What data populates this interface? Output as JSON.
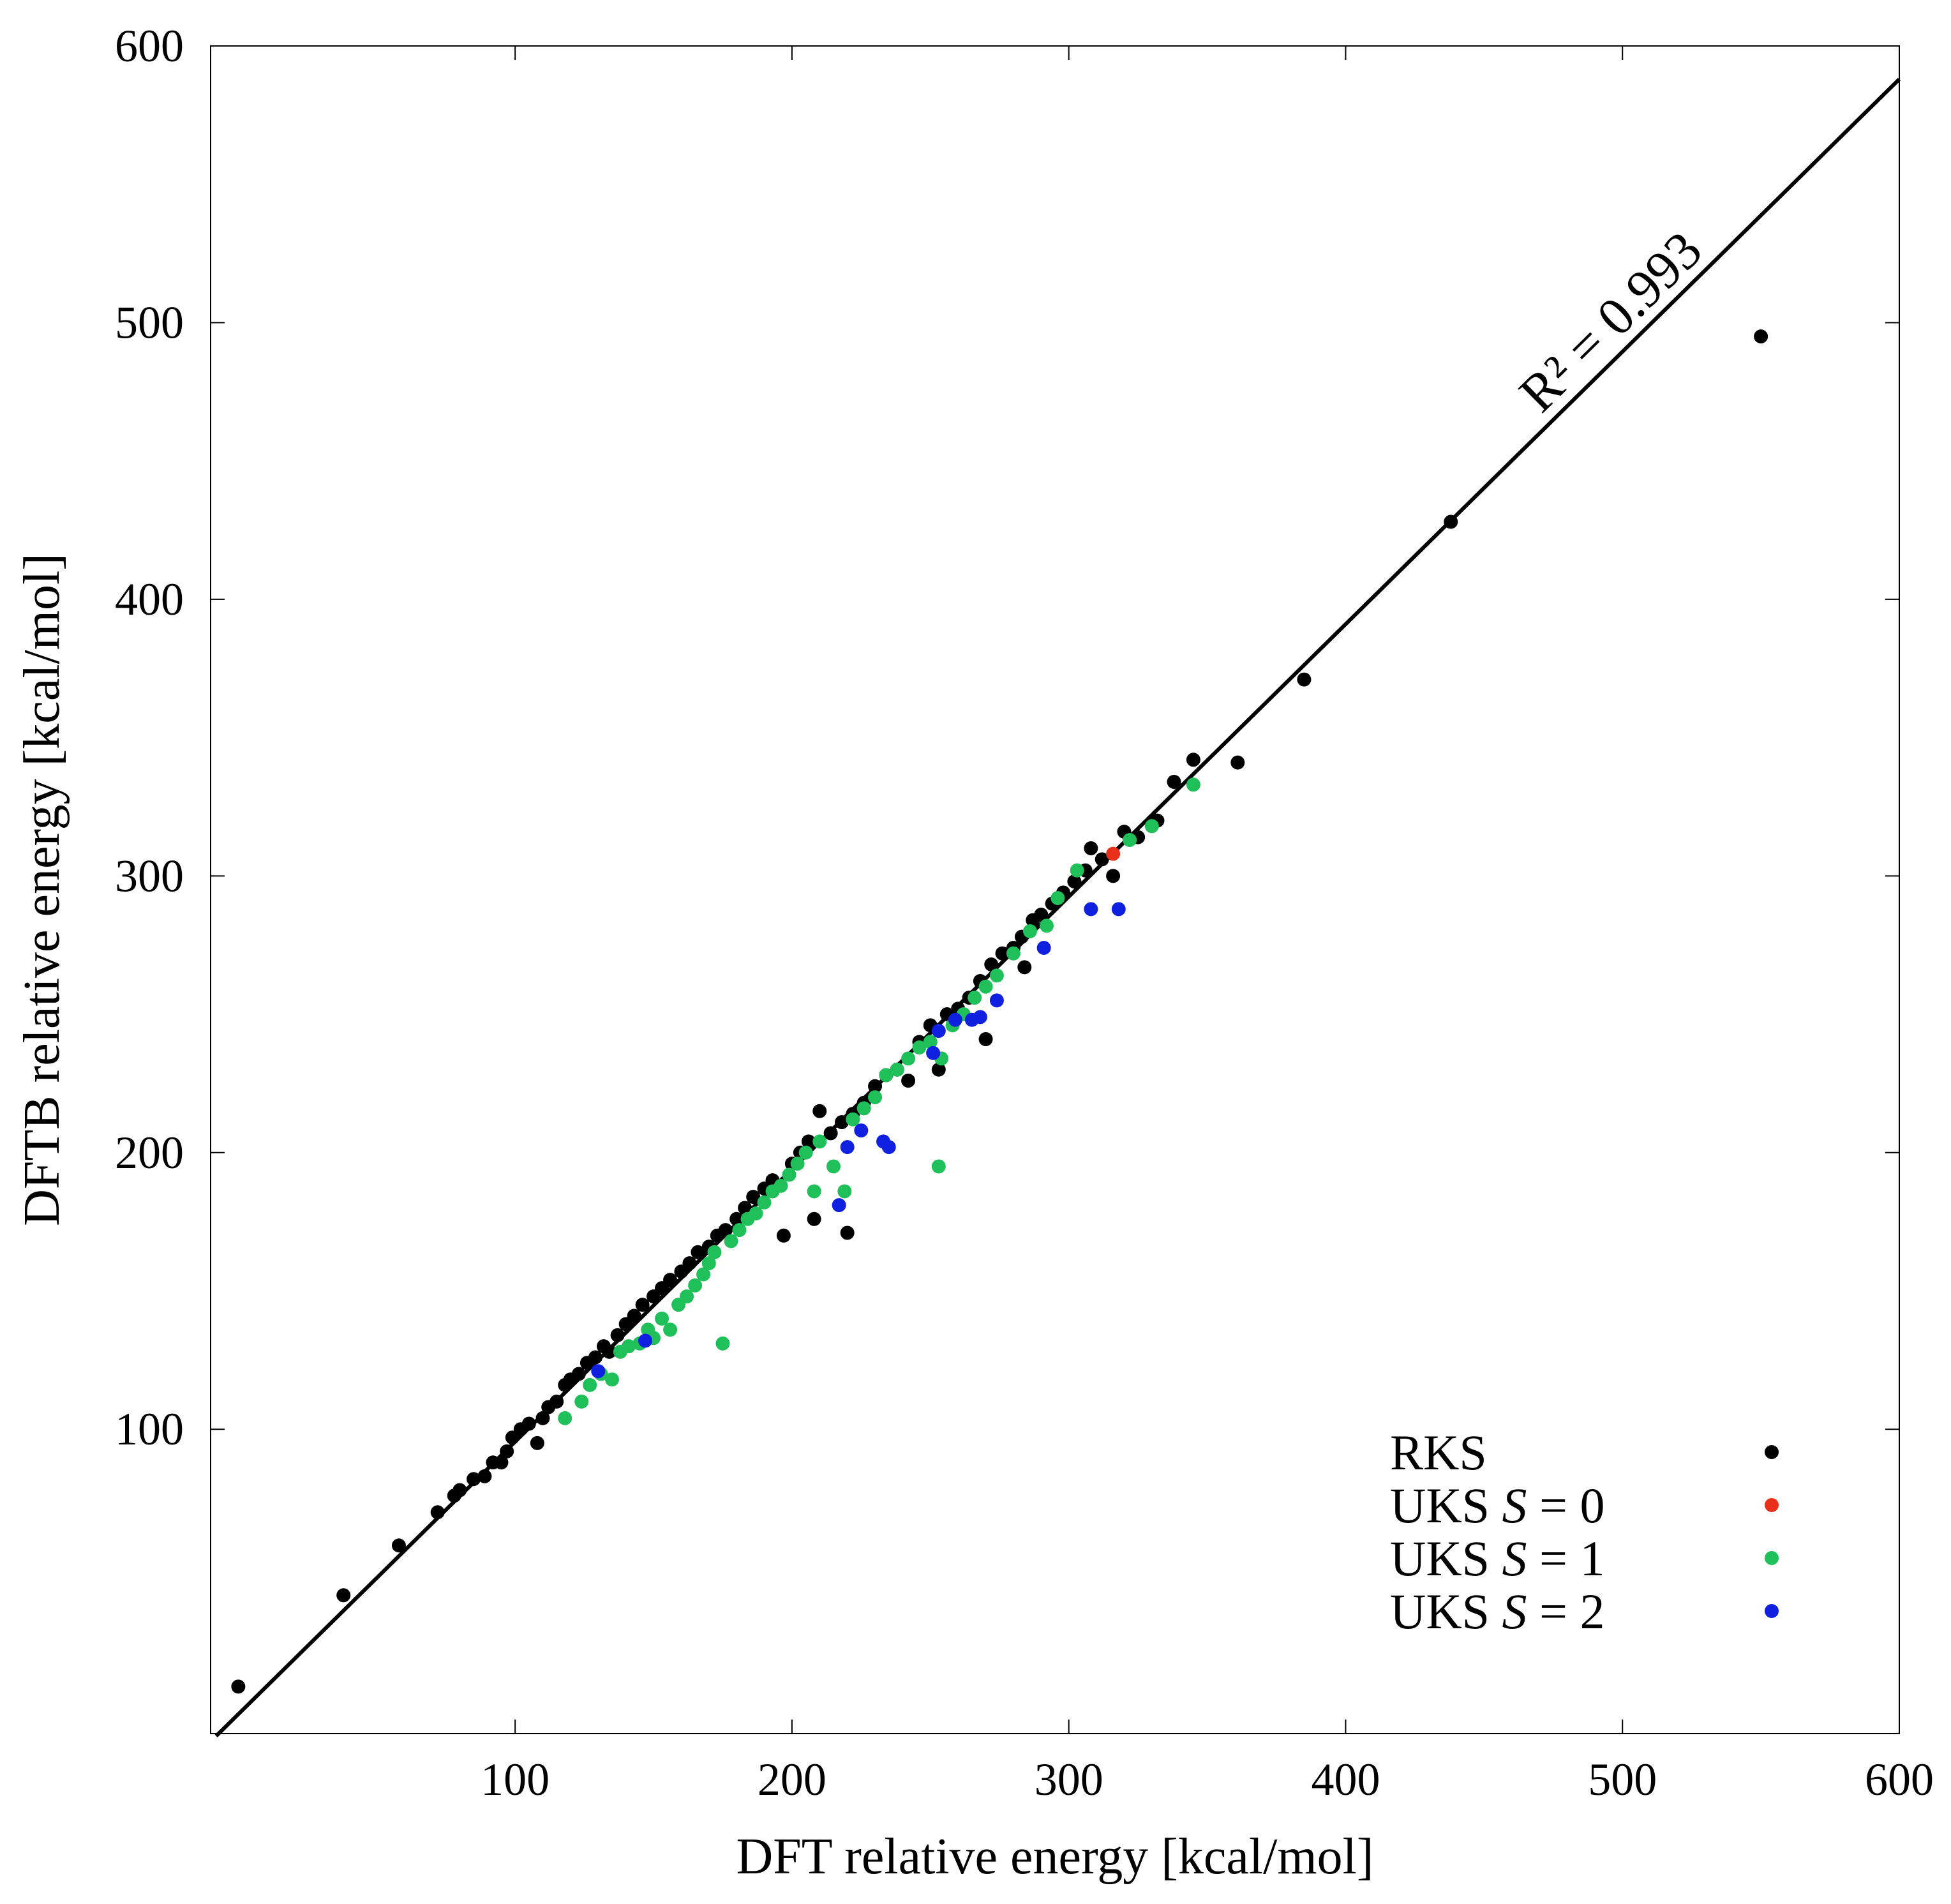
{
  "chart_data": {
    "type": "scatter",
    "title": "",
    "xlabel": "DFT relative energy [kcal/mol]",
    "ylabel": "DFTB relative energy [kcal/mol]",
    "xlim": [
      -10,
      600
    ],
    "ylim": [
      -10,
      600
    ],
    "x_ticks": [
      100,
      200,
      300,
      400,
      500,
      600
    ],
    "y_ticks": [
      100,
      200,
      300,
      400,
      500,
      600
    ],
    "grid": false,
    "legend_position": "bottom-right",
    "fit_line": {
      "slope": 0.985,
      "intercept": -3,
      "label": "R² = 0.993"
    },
    "series": [
      {
        "name": "RKS",
        "label_prefix": "RKS",
        "label_var": "",
        "label_eq": "",
        "color": "#000000",
        "points": [
          [
            0,
            7
          ],
          [
            38,
            40
          ],
          [
            58,
            58
          ],
          [
            72,
            70
          ],
          [
            78,
            76
          ],
          [
            80,
            78
          ],
          [
            85,
            82
          ],
          [
            89,
            83
          ],
          [
            92,
            88
          ],
          [
            95,
            88
          ],
          [
            97,
            92
          ],
          [
            99,
            97
          ],
          [
            102,
            100
          ],
          [
            105,
            102
          ],
          [
            108,
            95
          ],
          [
            110,
            104
          ],
          [
            112,
            108
          ],
          [
            115,
            110
          ],
          [
            118,
            116
          ],
          [
            120,
            118
          ],
          [
            123,
            120
          ],
          [
            126,
            124
          ],
          [
            129,
            126
          ],
          [
            132,
            130
          ],
          [
            134,
            128
          ],
          [
            137,
            134
          ],
          [
            140,
            138
          ],
          [
            143,
            141
          ],
          [
            146,
            145
          ],
          [
            150,
            148
          ],
          [
            153,
            151
          ],
          [
            156,
            154
          ],
          [
            160,
            157
          ],
          [
            163,
            160
          ],
          [
            166,
            164
          ],
          [
            170,
            166
          ],
          [
            173,
            170
          ],
          [
            176,
            172
          ],
          [
            180,
            176
          ],
          [
            183,
            180
          ],
          [
            186,
            184
          ],
          [
            190,
            187
          ],
          [
            193,
            190
          ],
          [
            197,
            170
          ],
          [
            200,
            196
          ],
          [
            203,
            200
          ],
          [
            206,
            204
          ],
          [
            208,
            176
          ],
          [
            210,
            215
          ],
          [
            214,
            207
          ],
          [
            218,
            211
          ],
          [
            220,
            171
          ],
          [
            222,
            214
          ],
          [
            226,
            218
          ],
          [
            230,
            224
          ],
          [
            234,
            228
          ],
          [
            238,
            230
          ],
          [
            242,
            226
          ],
          [
            246,
            240
          ],
          [
            250,
            246
          ],
          [
            253,
            230
          ],
          [
            256,
            250
          ],
          [
            260,
            252
          ],
          [
            264,
            256
          ],
          [
            268,
            262
          ],
          [
            270,
            241
          ],
          [
            272,
            268
          ],
          [
            276,
            272
          ],
          [
            280,
            274
          ],
          [
            283,
            278
          ],
          [
            284,
            267
          ],
          [
            287,
            284
          ],
          [
            290,
            286
          ],
          [
            294,
            290
          ],
          [
            298,
            294
          ],
          [
            302,
            298
          ],
          [
            306,
            302
          ],
          [
            308,
            310
          ],
          [
            312,
            306
          ],
          [
            316,
            300
          ],
          [
            320,
            316
          ],
          [
            325,
            314
          ],
          [
            332,
            320
          ],
          [
            338,
            334
          ],
          [
            345,
            342
          ],
          [
            361,
            341
          ],
          [
            385,
            371
          ],
          [
            438,
            428
          ],
          [
            550,
            495
          ]
        ]
      },
      {
        "name": "UKS S = 0",
        "label_prefix": "UKS ",
        "label_var": "S",
        "label_eq": " = 0",
        "color": "#e8301a",
        "points": [
          [
            316,
            308
          ]
        ]
      },
      {
        "name": "UKS S = 1",
        "label_prefix": "UKS ",
        "label_var": "S",
        "label_eq": " = 1",
        "color": "#1fbf5a",
        "points": [
          [
            118,
            104
          ],
          [
            124,
            110
          ],
          [
            127,
            116
          ],
          [
            131,
            120
          ],
          [
            135,
            118
          ],
          [
            138,
            128
          ],
          [
            141,
            130
          ],
          [
            145,
            131
          ],
          [
            148,
            136
          ],
          [
            150,
            133
          ],
          [
            153,
            140
          ],
          [
            156,
            136
          ],
          [
            159,
            145
          ],
          [
            162,
            148
          ],
          [
            165,
            152
          ],
          [
            168,
            156
          ],
          [
            170,
            160
          ],
          [
            172,
            164
          ],
          [
            175,
            131
          ],
          [
            178,
            168
          ],
          [
            181,
            172
          ],
          [
            184,
            176
          ],
          [
            187,
            178
          ],
          [
            190,
            182
          ],
          [
            193,
            186
          ],
          [
            196,
            188
          ],
          [
            199,
            192
          ],
          [
            202,
            196
          ],
          [
            205,
            200
          ],
          [
            208,
            186
          ],
          [
            210,
            204
          ],
          [
            215,
            195
          ],
          [
            219,
            186
          ],
          [
            222,
            212
          ],
          [
            226,
            216
          ],
          [
            230,
            220
          ],
          [
            234,
            228
          ],
          [
            238,
            230
          ],
          [
            242,
            234
          ],
          [
            246,
            238
          ],
          [
            250,
            240
          ],
          [
            253,
            195
          ],
          [
            254,
            234
          ],
          [
            258,
            246
          ],
          [
            262,
            250
          ],
          [
            266,
            256
          ],
          [
            270,
            260
          ],
          [
            274,
            264
          ],
          [
            280,
            272
          ],
          [
            286,
            280
          ],
          [
            292,
            282
          ],
          [
            296,
            292
          ],
          [
            303,
            302
          ],
          [
            322,
            313
          ],
          [
            330,
            318
          ],
          [
            345,
            333
          ]
        ]
      },
      {
        "name": "UKS S = 2",
        "label_prefix": "UKS ",
        "label_var": "S",
        "label_eq": " = 2",
        "color": "#1020e0",
        "points": [
          [
            130,
            121
          ],
          [
            147,
            132
          ],
          [
            217,
            181
          ],
          [
            220,
            202
          ],
          [
            225,
            208
          ],
          [
            233,
            204
          ],
          [
            235,
            202
          ],
          [
            251,
            236
          ],
          [
            253,
            244
          ],
          [
            259,
            248
          ],
          [
            265,
            248
          ],
          [
            268,
            249
          ],
          [
            274,
            255
          ],
          [
            291,
            274
          ],
          [
            308,
            288
          ],
          [
            318,
            288
          ]
        ]
      }
    ]
  }
}
